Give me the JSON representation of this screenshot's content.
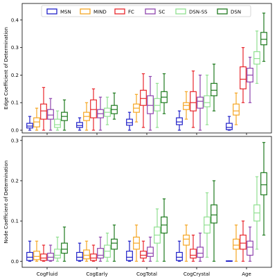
{
  "figure": {
    "background": "#ffffff",
    "legend_position": "top-center"
  },
  "chart_data": [
    {
      "type": "box",
      "ylabel": "Edge Coefficient of Determination",
      "ylim": [
        -0.01,
        0.46
      ],
      "yticks": [
        "0.0",
        "0.1",
        "0.2",
        "0.3",
        "0.4"
      ],
      "ytick_values": [
        0.0,
        0.1,
        0.2,
        0.3,
        0.4
      ],
      "categories": [
        "CogFluid",
        "CogEarly",
        "CogTotal",
        "CogCrystal",
        "Age"
      ],
      "show_xticklabels": false,
      "series": [
        {
          "name": "MSN",
          "color": "#1f1fc8",
          "boxes": [
            {
              "whislo": 0.0,
              "q1": 0.008,
              "med": 0.015,
              "q3": 0.025,
              "whishi": 0.05
            },
            {
              "whislo": 0.0,
              "q1": 0.01,
              "med": 0.017,
              "q3": 0.028,
              "whishi": 0.045
            },
            {
              "whislo": 0.0,
              "q1": 0.018,
              "med": 0.027,
              "q3": 0.04,
              "whishi": 0.065
            },
            {
              "whislo": 0.0,
              "q1": 0.02,
              "med": 0.03,
              "q3": 0.045,
              "whishi": 0.07
            },
            {
              "whislo": 0.0,
              "q1": 0.002,
              "med": 0.01,
              "q3": 0.025,
              "whishi": 0.05
            }
          ]
        },
        {
          "name": "MIND",
          "color": "#f5a623",
          "boxes": [
            {
              "whislo": 0.0,
              "q1": 0.012,
              "med": 0.03,
              "q3": 0.045,
              "whishi": 0.08
            },
            {
              "whislo": 0.0,
              "q1": 0.035,
              "med": 0.05,
              "q3": 0.065,
              "whishi": 0.1
            },
            {
              "whislo": 0.03,
              "q1": 0.065,
              "med": 0.08,
              "q3": 0.095,
              "whishi": 0.13
            },
            {
              "whislo": 0.04,
              "q1": 0.075,
              "med": 0.09,
              "q3": 0.1,
              "whishi": 0.14
            },
            {
              "whislo": 0.02,
              "q1": 0.055,
              "med": 0.07,
              "q3": 0.095,
              "whishi": 0.135
            }
          ]
        },
        {
          "name": "FC",
          "color": "#e8262b",
          "boxes": [
            {
              "whislo": 0.0,
              "q1": 0.04,
              "med": 0.07,
              "q3": 0.095,
              "whishi": 0.155
            },
            {
              "whislo": 0.0,
              "q1": 0.045,
              "med": 0.075,
              "q3": 0.11,
              "whishi": 0.15
            },
            {
              "whislo": 0.01,
              "q1": 0.09,
              "med": 0.115,
              "q3": 0.145,
              "whishi": 0.205
            },
            {
              "whislo": 0.01,
              "q1": 0.07,
              "med": 0.1,
              "q3": 0.14,
              "whishi": 0.215
            },
            {
              "whislo": 0.1,
              "q1": 0.15,
              "med": 0.185,
              "q3": 0.23,
              "whishi": 0.3
            }
          ]
        },
        {
          "name": "SC",
          "color": "#8e44ad",
          "boxes": [
            {
              "whislo": 0.0,
              "q1": 0.04,
              "med": 0.055,
              "q3": 0.075,
              "whishi": 0.115
            },
            {
              "whislo": 0.0,
              "q1": 0.045,
              "med": 0.06,
              "q3": 0.075,
              "whishi": 0.12
            },
            {
              "whislo": 0.0,
              "q1": 0.06,
              "med": 0.09,
              "q3": 0.125,
              "whishi": 0.195
            },
            {
              "whislo": 0.0,
              "q1": 0.08,
              "med": 0.105,
              "q3": 0.12,
              "whishi": 0.2
            },
            {
              "whislo": 0.1,
              "q1": 0.175,
              "med": 0.2,
              "q3": 0.225,
              "whishi": 0.265
            }
          ]
        },
        {
          "name": "DSN-SS",
          "color": "#90e090",
          "boxes": [
            {
              "whislo": 0.0,
              "q1": 0.01,
              "med": 0.02,
              "q3": 0.04,
              "whishi": 0.07
            },
            {
              "whislo": 0.02,
              "q1": 0.05,
              "med": 0.065,
              "q3": 0.08,
              "whishi": 0.12
            },
            {
              "whislo": 0.01,
              "q1": 0.07,
              "med": 0.09,
              "q3": 0.115,
              "whishi": 0.17
            },
            {
              "whislo": 0.02,
              "q1": 0.085,
              "med": 0.1,
              "q3": 0.125,
              "whishi": 0.2
            },
            {
              "whislo": 0.17,
              "q1": 0.24,
              "med": 0.26,
              "q3": 0.285,
              "whishi": 0.36
            }
          ]
        },
        {
          "name": "DSN",
          "color": "#1e7a1e",
          "boxes": [
            {
              "whislo": 0.0,
              "q1": 0.035,
              "med": 0.05,
              "q3": 0.065,
              "whishi": 0.11
            },
            {
              "whislo": 0.04,
              "q1": 0.06,
              "med": 0.075,
              "q3": 0.09,
              "whishi": 0.135
            },
            {
              "whislo": 0.06,
              "q1": 0.1,
              "med": 0.12,
              "q3": 0.14,
              "whishi": 0.205
            },
            {
              "whislo": 0.07,
              "q1": 0.125,
              "med": 0.145,
              "q3": 0.17,
              "whishi": 0.24
            },
            {
              "whislo": 0.25,
              "q1": 0.31,
              "med": 0.33,
              "q3": 0.355,
              "whishi": 0.425
            }
          ]
        }
      ]
    },
    {
      "type": "box",
      "ylabel": "Node Coefficient of Determination",
      "ylim": [
        -0.015,
        0.31
      ],
      "yticks": [
        "0.0",
        "0.1",
        "0.2",
        "0.3"
      ],
      "ytick_values": [
        0.0,
        0.1,
        0.2,
        0.3
      ],
      "categories": [
        "CogFluid",
        "CogEarly",
        "CogTotal",
        "CogCrystal",
        "Age"
      ],
      "show_xticklabels": true,
      "series": [
        {
          "name": "MSN",
          "color": "#1f1fc8",
          "boxes": [
            {
              "whislo": 0.0,
              "q1": 0.002,
              "med": 0.01,
              "q3": 0.022,
              "whishi": 0.05
            },
            {
              "whislo": 0.0,
              "q1": 0.002,
              "med": 0.01,
              "q3": 0.022,
              "whishi": 0.045
            },
            {
              "whislo": 0.0,
              "q1": 0.002,
              "med": 0.01,
              "q3": 0.025,
              "whishi": 0.05
            },
            {
              "whislo": 0.0,
              "q1": 0.002,
              "med": 0.01,
              "q3": 0.022,
              "whishi": 0.05
            },
            {
              "whislo": 0.0,
              "q1": 0.0,
              "med": 0.0,
              "q3": 0.001,
              "whishi": 0.001
            }
          ]
        },
        {
          "name": "MIND",
          "color": "#f5a623",
          "boxes": [
            {
              "whislo": 0.0,
              "q1": 0.004,
              "med": 0.012,
              "q3": 0.025,
              "whishi": 0.05
            },
            {
              "whislo": 0.0,
              "q1": 0.006,
              "med": 0.015,
              "q3": 0.028,
              "whishi": 0.05
            },
            {
              "whislo": 0.0,
              "q1": 0.03,
              "med": 0.045,
              "q3": 0.06,
              "whishi": 0.09
            },
            {
              "whislo": 0.0,
              "q1": 0.04,
              "med": 0.055,
              "q3": 0.065,
              "whishi": 0.09
            },
            {
              "whislo": 0.0,
              "q1": 0.03,
              "med": 0.04,
              "q3": 0.055,
              "whishi": 0.09
            }
          ]
        },
        {
          "name": "FC",
          "color": "#e8262b",
          "boxes": [
            {
              "whislo": 0.0,
              "q1": 0.002,
              "med": 0.008,
              "q3": 0.018,
              "whishi": 0.04
            },
            {
              "whislo": 0.0,
              "q1": 0.002,
              "med": 0.008,
              "q3": 0.018,
              "whishi": 0.04
            },
            {
              "whislo": 0.0,
              "q1": 0.008,
              "med": 0.015,
              "q3": 0.025,
              "whishi": 0.05
            },
            {
              "whislo": 0.0,
              "q1": 0.008,
              "med": 0.015,
              "q3": 0.03,
              "whishi": 0.065
            },
            {
              "whislo": 0.0,
              "q1": 0.03,
              "med": 0.045,
              "q3": 0.065,
              "whishi": 0.1
            }
          ]
        },
        {
          "name": "SC",
          "color": "#8e44ad",
          "boxes": [
            {
              "whislo": 0.0,
              "q1": 0.002,
              "med": 0.01,
              "q3": 0.02,
              "whishi": 0.04
            },
            {
              "whislo": 0.0,
              "q1": 0.008,
              "med": 0.015,
              "q3": 0.032,
              "whishi": 0.06
            },
            {
              "whislo": 0.0,
              "q1": 0.012,
              "med": 0.02,
              "q3": 0.035,
              "whishi": 0.06
            },
            {
              "whislo": 0.0,
              "q1": 0.01,
              "med": 0.02,
              "q3": 0.035,
              "whishi": 0.07
            },
            {
              "whislo": 0.0,
              "q1": 0.015,
              "med": 0.035,
              "q3": 0.05,
              "whishi": 0.085
            }
          ]
        },
        {
          "name": "DSN-SS",
          "color": "#90e090",
          "boxes": [
            {
              "whislo": 0.0,
              "q1": 0.008,
              "med": 0.015,
              "q3": 0.03,
              "whishi": 0.06
            },
            {
              "whislo": 0.0,
              "q1": 0.01,
              "med": 0.025,
              "q3": 0.04,
              "whishi": 0.07
            },
            {
              "whislo": 0.0,
              "q1": 0.045,
              "med": 0.065,
              "q3": 0.085,
              "whishi": 0.13
            },
            {
              "whislo": 0.01,
              "q1": 0.07,
              "med": 0.09,
              "q3": 0.11,
              "whishi": 0.17
            },
            {
              "whislo": 0.03,
              "q1": 0.1,
              "med": 0.12,
              "q3": 0.14,
              "whishi": 0.21
            }
          ]
        },
        {
          "name": "DSN",
          "color": "#1e7a1e",
          "boxes": [
            {
              "whislo": 0.0,
              "q1": 0.02,
              "med": 0.03,
              "q3": 0.045,
              "whishi": 0.085
            },
            {
              "whislo": 0.0,
              "q1": 0.03,
              "med": 0.045,
              "q3": 0.055,
              "whishi": 0.09
            },
            {
              "whislo": 0.0,
              "q1": 0.07,
              "med": 0.09,
              "q3": 0.11,
              "whishi": 0.155
            },
            {
              "whislo": 0.0,
              "q1": 0.095,
              "med": 0.115,
              "q3": 0.14,
              "whishi": 0.2
            },
            {
              "whislo": 0.065,
              "q1": 0.165,
              "med": 0.19,
              "q3": 0.22,
              "whishi": 0.295
            }
          ]
        }
      ]
    }
  ]
}
